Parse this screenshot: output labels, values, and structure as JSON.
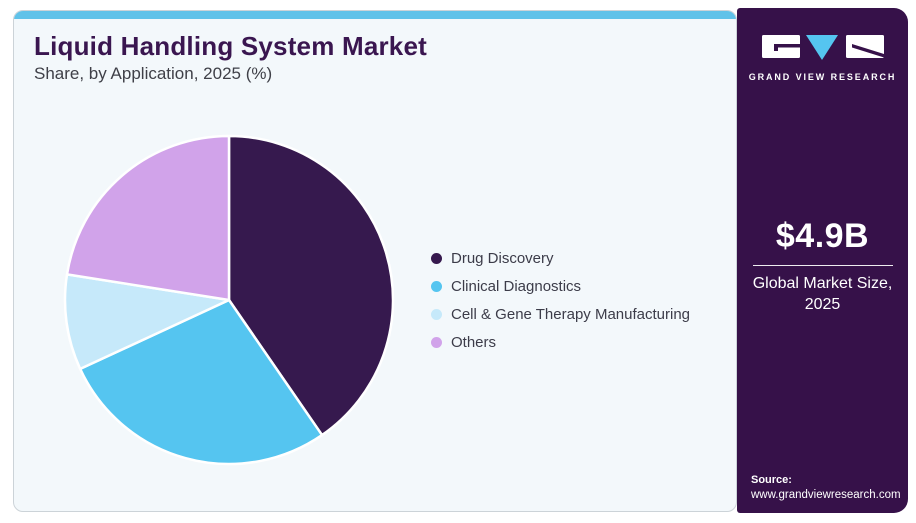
{
  "header": {
    "title": "Liquid Handling System Market",
    "subtitle": "Share, by Application, 2025 (%)"
  },
  "chart_data": {
    "type": "pie",
    "title": "Liquid Handling System Market Share, by Application, 2025 (%)",
    "categories": [
      "Drug Discovery",
      "Clinical Diagnostics",
      "Cell & Gene Therapy Manufacturing",
      "Others"
    ],
    "values": [
      40.4,
      27.7,
      9.4,
      22.5
    ],
    "unit": "%",
    "colors": [
      "#36194E",
      "#55C5F0",
      "#C6E9FA",
      "#D1A3EA"
    ],
    "start_angle_deg": 0,
    "direction": "clockwise",
    "legend_position": "right",
    "data_labels_shown": false
  },
  "sidebar": {
    "logo": {
      "brand": "GRAND VIEW RESEARCH"
    },
    "market_size": {
      "value": "$4.9B",
      "label_line1": "Global Market Size,",
      "label_line2": "2025"
    },
    "source": {
      "label": "Source:",
      "url": "www.grandviewresearch.com"
    }
  },
  "theme": {
    "accent_bar": "#60C2E9",
    "card_bg": "#F3F8FB",
    "card_border": "#CCD3D8",
    "sidebar_bg": "#361149",
    "title_color": "#3A1650",
    "subtitle_color": "#3F4048",
    "legend_text": "#3C3C49"
  }
}
